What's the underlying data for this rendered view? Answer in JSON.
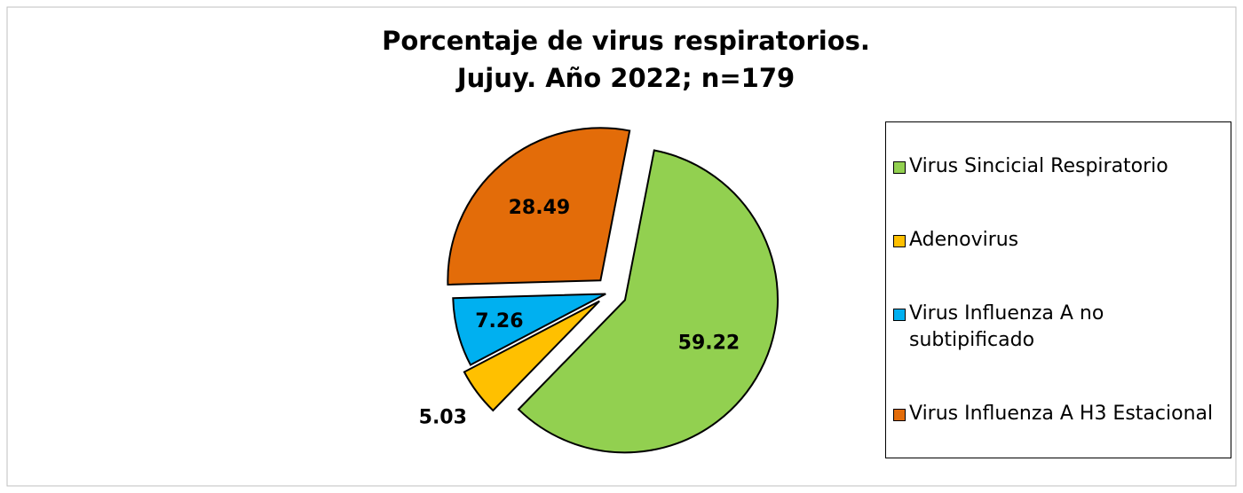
{
  "chart_data": {
    "type": "pie",
    "title": [
      "Porcentaje de virus respiratorios.",
      "Jujuy. Año 2022; n=179"
    ],
    "categories": [
      "Virus Sincicial Respiratorio",
      "Adenovirus",
      "Virus Influenza A no subtipificado",
      "Virus Influenza A  H3 Estacional"
    ],
    "values": [
      59.22,
      5.03,
      7.26,
      28.49
    ],
    "colors": [
      "#92d050",
      "#ffc000",
      "#00b0f0",
      "#e36c09"
    ],
    "legend": "right"
  }
}
